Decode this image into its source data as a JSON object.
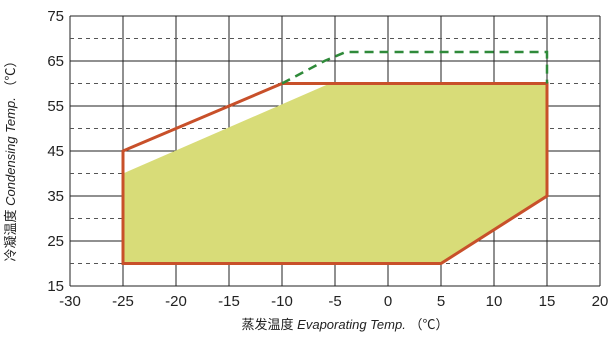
{
  "chart_data": {
    "type": "area",
    "xlim": [
      -30,
      20
    ],
    "ylim": [
      15,
      75
    ],
    "x_ticks": [
      -30,
      -25,
      -20,
      -15,
      -10,
      -5,
      0,
      5,
      10,
      15,
      20
    ],
    "y_tick_labels": [
      15,
      25,
      35,
      45,
      55,
      65,
      75
    ],
    "major_gridlines_y": [
      15,
      25,
      35,
      45,
      55,
      65,
      75
    ],
    "minor_dashed_gridlines_y": [
      20,
      30,
      40,
      50,
      60,
      70
    ],
    "xlabel": {
      "cn": "蒸发温度",
      "en": "Evaporating Temp.",
      "unit": "（℃）"
    },
    "ylabel": {
      "cn": "冷凝温度",
      "en": "Condensing Temp.",
      "unit": "（℃）"
    },
    "series": [
      {
        "kind": "filled-region",
        "color": "#d8dc78",
        "points": [
          [
            -25,
            40
          ],
          [
            -5.5,
            60
          ],
          [
            15,
            60
          ],
          [
            15,
            35
          ],
          [
            5,
            20
          ],
          [
            -25,
            20
          ]
        ]
      },
      {
        "kind": "outline",
        "color": "#c8502a",
        "points": [
          [
            -25,
            20
          ],
          [
            -25,
            45
          ],
          [
            -10,
            60
          ],
          [
            15,
            60
          ],
          [
            15,
            35
          ],
          [
            5,
            20
          ],
          [
            -25,
            20
          ]
        ]
      },
      {
        "kind": "dashed-extension",
        "color": "#2f8a3a",
        "points": [
          [
            -10,
            60
          ],
          [
            -6,
            65
          ],
          [
            -4,
            67
          ],
          [
            15,
            67
          ],
          [
            15,
            60
          ]
        ]
      }
    ],
    "grid": true,
    "colors": {
      "major_grid": "#222222",
      "minor_grid": "#555555"
    }
  }
}
